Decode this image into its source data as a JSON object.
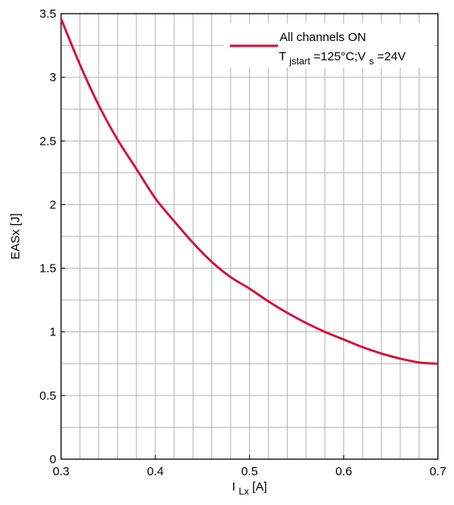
{
  "chart_data": {
    "type": "line",
    "xlabel": {
      "main": "I",
      "sub": "Lx",
      "rest": " [A]"
    },
    "ylabel": "EASx [J]",
    "xlim": [
      0.3,
      0.7
    ],
    "ylim": [
      0,
      3.5
    ],
    "x_ticks": [
      0.3,
      0.4,
      0.5,
      0.6,
      0.7
    ],
    "x_tick_labels": [
      "0.3",
      "0.4",
      "0.5",
      "0.6",
      "0.7"
    ],
    "y_ticks": [
      0,
      0.5,
      1,
      1.5,
      2,
      2.5,
      3,
      3.5
    ],
    "y_tick_labels": [
      "0",
      "0.5",
      "1",
      "1.5",
      "2",
      "2.5",
      "3",
      "3.5"
    ],
    "x_minor_step": 0.02,
    "y_minor_step": 0.25,
    "grid": true,
    "legend_position": "top-right",
    "legend": {
      "line1": "All channels ON",
      "line2_parts": {
        "a": "T",
        "a_sub": "jstart",
        "b": "=125°C;V",
        "b_sub": "s",
        "c": "=24V"
      }
    },
    "series": [
      {
        "color": "#d4103c",
        "x": [
          0.3,
          0.32,
          0.34,
          0.36,
          0.38,
          0.4,
          0.42,
          0.44,
          0.46,
          0.48,
          0.5,
          0.52,
          0.54,
          0.56,
          0.58,
          0.6,
          0.62,
          0.64,
          0.66,
          0.68,
          0.7
        ],
        "y": [
          3.46,
          3.1,
          2.78,
          2.51,
          2.28,
          2.05,
          1.87,
          1.7,
          1.55,
          1.43,
          1.34,
          1.24,
          1.15,
          1.07,
          1.0,
          0.94,
          0.88,
          0.83,
          0.79,
          0.76,
          0.75
        ]
      }
    ]
  }
}
